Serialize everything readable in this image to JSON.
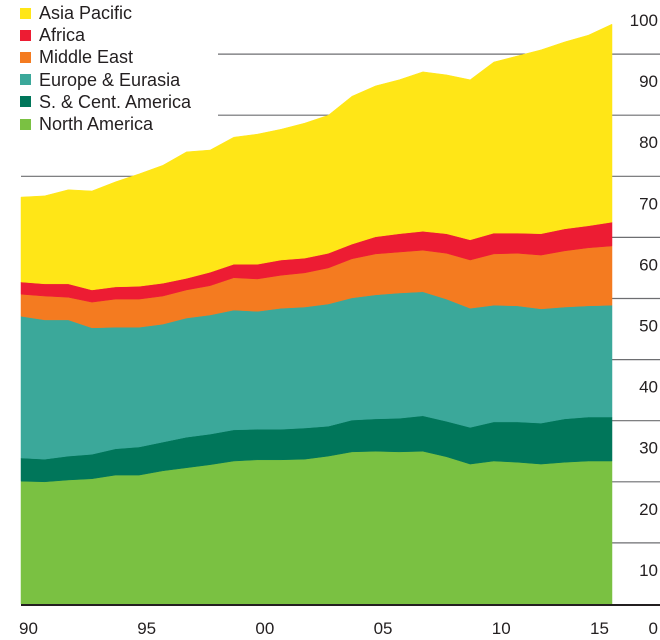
{
  "chart_data": {
    "type": "area",
    "stacked": true,
    "title": "",
    "xlabel": "",
    "ylabel": "",
    "x": [
      1990,
      1991,
      1992,
      1993,
      1994,
      1995,
      1996,
      1997,
      1998,
      1999,
      2000,
      2001,
      2002,
      2003,
      2004,
      2005,
      2006,
      2007,
      2008,
      2009,
      2010,
      2011,
      2012,
      2013,
      2014,
      2015
    ],
    "xlim": [
      1990,
      2015
    ],
    "ylim": [
      0,
      100
    ],
    "x_ticks": [
      {
        "value": 1990,
        "label": "90"
      },
      {
        "value": 1995,
        "label": "95"
      },
      {
        "value": 2000,
        "label": "00"
      },
      {
        "value": 2005,
        "label": "05"
      },
      {
        "value": 2010,
        "label": "10"
      },
      {
        "value": 2015,
        "label": "15"
      }
    ],
    "y_ticks": [
      {
        "value": 0,
        "label": "0"
      },
      {
        "value": 10,
        "label": "10"
      },
      {
        "value": 20,
        "label": "20"
      },
      {
        "value": 30,
        "label": "30"
      },
      {
        "value": 40,
        "label": "40"
      },
      {
        "value": 50,
        "label": "50"
      },
      {
        "value": 60,
        "label": "60"
      },
      {
        "value": 70,
        "label": "70"
      },
      {
        "value": 80,
        "label": "80"
      },
      {
        "value": 90,
        "label": "90"
      },
      {
        "value": 100,
        "label": "100"
      }
    ],
    "y_axis_side": "right",
    "grid": true,
    "legend_position": "top-left",
    "series": [
      {
        "name": "North America",
        "color": "#7ac142",
        "values": [
          20.1,
          20.0,
          20.3,
          20.5,
          21.1,
          21.1,
          21.8,
          22.3,
          22.8,
          23.4,
          23.6,
          23.6,
          23.7,
          24.2,
          24.9,
          25.0,
          24.9,
          25.0,
          24.1,
          22.9,
          23.4,
          23.2,
          22.9,
          23.2,
          23.4,
          23.4
        ]
      },
      {
        "name": "S. & Cent. America",
        "color": "#00765a",
        "values": [
          3.8,
          3.7,
          3.9,
          4.0,
          4.3,
          4.6,
          4.7,
          5.0,
          5.0,
          5.1,
          5.0,
          5.0,
          5.1,
          4.9,
          5.2,
          5.3,
          5.5,
          5.8,
          5.8,
          6.0,
          6.4,
          6.6,
          6.7,
          7.1,
          7.2,
          7.2
        ]
      },
      {
        "name": "Europe & Eurasia",
        "color": "#3ba89a",
        "values": [
          23.2,
          22.8,
          22.3,
          20.7,
          19.9,
          19.6,
          19.3,
          19.5,
          19.5,
          19.6,
          19.3,
          19.8,
          19.8,
          20.0,
          20.0,
          20.3,
          20.5,
          20.3,
          20.0,
          19.5,
          19.1,
          19.0,
          18.7,
          18.3,
          18.2,
          18.3
        ]
      },
      {
        "name": "Middle East",
        "color": "#f47b20",
        "values": [
          3.6,
          3.9,
          3.7,
          4.2,
          4.6,
          4.6,
          4.6,
          4.6,
          4.8,
          5.3,
          5.3,
          5.4,
          5.6,
          5.9,
          6.4,
          6.7,
          6.7,
          6.8,
          7.5,
          7.9,
          8.4,
          8.6,
          8.8,
          9.2,
          9.5,
          9.7
        ]
      },
      {
        "name": "Africa",
        "color": "#ed1c33",
        "values": [
          2.0,
          2.0,
          2.2,
          2.0,
          2.0,
          2.1,
          2.1,
          1.9,
          2.2,
          2.2,
          2.4,
          2.5,
          2.4,
          2.4,
          2.4,
          2.8,
          3.0,
          3.1,
          3.2,
          3.3,
          3.4,
          3.3,
          3.5,
          3.6,
          3.6,
          3.9
        ]
      },
      {
        "name": "Asia Pacific",
        "color": "#ffe617",
        "values": [
          13.9,
          14.4,
          15.4,
          16.2,
          17.2,
          18.4,
          19.3,
          20.7,
          20.0,
          20.8,
          21.3,
          21.4,
          22.1,
          22.6,
          24.2,
          24.7,
          25.2,
          26.1,
          26.0,
          26.2,
          28.0,
          29.0,
          30.1,
          30.6,
          31.2,
          32.4
        ]
      }
    ],
    "legend_order": [
      "Asia Pacific",
      "Africa",
      "Middle East",
      "Europe & Eurasia",
      "S. & Cent. America",
      "North America"
    ]
  }
}
